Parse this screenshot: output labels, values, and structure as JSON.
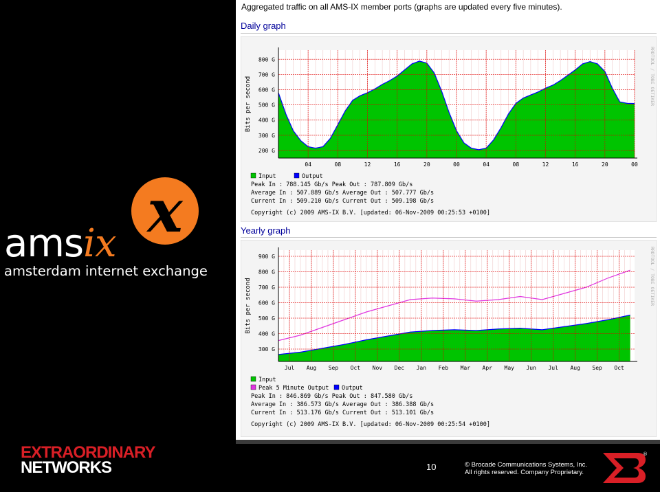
{
  "page": {
    "headline": "Aggregated traffic on all AMS-IX member ports (graphs are updated every five minutes).",
    "logo_word_plain": "ams",
    "logo_word_accent": "ix",
    "logo_subtitle": "amsterdam internet exchange",
    "brand_line1": "EXTRAORDINARY",
    "brand_line2": "NETWORKS",
    "slide_number": "10",
    "copyright_line1": "© Brocade Communications Systems, Inc.",
    "copyright_line2": "All rights reserved. Company Proprietary.",
    "colors": {
      "input_fill": "#00c400",
      "output_line": "#0000ff",
      "peak_output": "#e034e0",
      "grid": "#e00000",
      "brand_red": "#d91f26",
      "logo_orange": "#f47b20"
    }
  },
  "chart_data": [
    {
      "type": "area",
      "title": "Daily graph",
      "ylabel": "Bits per second",
      "watermark": "RRDTOOL / TOBI OETIKER",
      "ylim": [
        150,
        860
      ],
      "y_ticks": [
        "800 G",
        "700 G",
        "600 G",
        "500 G",
        "400 G",
        "300 G",
        "200 G"
      ],
      "y_tick_values": [
        800,
        700,
        600,
        500,
        400,
        300,
        200
      ],
      "x_ticks": [
        "04",
        "08",
        "12",
        "16",
        "20",
        "00",
        "04",
        "08",
        "12",
        "16",
        "20",
        "00"
      ],
      "x_tick_hours": [
        4,
        8,
        12,
        16,
        20,
        24,
        28,
        32,
        36,
        40,
        44,
        48
      ],
      "xlim_hours": [
        0,
        48
      ],
      "legend": [
        {
          "name": "Input",
          "color": "#00c400"
        },
        {
          "name": "Output",
          "color": "#0000ff"
        }
      ],
      "stats": [
        "Peak In     :  788.145 Gb/s   Peak Out    :  787.809 Gb/s",
        "Average In  :  507.889 Gb/s   Average Out :  507.777 Gb/s",
        "Current In  :  509.210 Gb/s   Current Out :  509.198 Gb/s"
      ],
      "footer": "Copyright (c) 2009 AMS-IX B.V.    [updated: 06-Nov-2009 00:25:53 +0100]",
      "series": [
        {
          "name": "Input",
          "x_hours": [
            0,
            1,
            2,
            3,
            4,
            5,
            6,
            7,
            8,
            9,
            10,
            11,
            12,
            13,
            14,
            15,
            16,
            17,
            18,
            19,
            20,
            21,
            22,
            23,
            24,
            25,
            26,
            27,
            28,
            29,
            30,
            31,
            32,
            33,
            34,
            35,
            36,
            37,
            38,
            39,
            40,
            41,
            42,
            43,
            44,
            45,
            46,
            47,
            48
          ],
          "values": [
            580,
            440,
            330,
            265,
            225,
            215,
            225,
            280,
            370,
            460,
            530,
            560,
            580,
            605,
            635,
            660,
            690,
            730,
            770,
            788,
            775,
            710,
            590,
            450,
            330,
            250,
            215,
            205,
            215,
            270,
            350,
            440,
            510,
            545,
            565,
            585,
            610,
            630,
            660,
            695,
            730,
            770,
            785,
            770,
            720,
            610,
            520,
            510,
            509
          ]
        }
      ]
    },
    {
      "type": "area",
      "title": "Yearly graph",
      "ylabel": "Bits per second",
      "watermark": "RRDTOOL / TOBI OETIKER",
      "ylim": [
        220,
        940
      ],
      "y_ticks": [
        "900 G",
        "800 G",
        "700 G",
        "600 G",
        "500 G",
        "400 G",
        "300 G"
      ],
      "y_tick_values": [
        900,
        800,
        700,
        600,
        500,
        400,
        300
      ],
      "x_ticks": [
        "Jul",
        "Aug",
        "Sep",
        "Oct",
        "Nov",
        "Dec",
        "Jan",
        "Feb",
        "Mar",
        "Apr",
        "May",
        "Jun",
        "Jul",
        "Aug",
        "Sep",
        "Oct"
      ],
      "x_tick_months": [
        0.5,
        1.5,
        2.5,
        3.5,
        4.5,
        5.5,
        6.5,
        7.5,
        8.5,
        9.5,
        10.5,
        11.5,
        12.5,
        13.5,
        14.5,
        15.5
      ],
      "xlim_months": [
        0,
        16.2
      ],
      "legend": [
        {
          "name": "Input",
          "color": "#00c400"
        },
        {
          "name": "Peak 5 Minute Output",
          "color": "#e034e0"
        },
        {
          "name": "Output",
          "color": "#0000ff"
        }
      ],
      "stats": [
        "Peak In     :  846.869 Gb/s   Peak Out    :  847.580 Gb/s",
        "Average In  :  386.573 Gb/s   Average Out :  386.388 Gb/s",
        "Current In  :  513.176 Gb/s   Current Out :  513.101 Gb/s"
      ],
      "footer": "Copyright (c) 2009 AMS-IX B.V.    [updated: 06-Nov-2009 00:25:54 +0100]",
      "series": [
        {
          "name": "Input",
          "x_months": [
            0,
            1,
            2,
            3,
            4,
            5,
            6,
            7,
            8,
            9,
            10,
            11,
            12,
            13,
            14,
            15,
            16
          ],
          "values": [
            265,
            280,
            305,
            330,
            360,
            385,
            410,
            420,
            425,
            420,
            430,
            435,
            425,
            445,
            465,
            490,
            520
          ]
        },
        {
          "name": "Peak 5 Minute Output",
          "x_months": [
            0,
            1,
            2,
            3,
            4,
            5,
            6,
            7,
            8,
            9,
            10,
            11,
            12,
            13,
            14,
            15,
            16
          ],
          "values": [
            355,
            390,
            440,
            490,
            540,
            580,
            620,
            630,
            625,
            610,
            620,
            640,
            620,
            660,
            700,
            760,
            810
          ]
        }
      ]
    }
  ]
}
